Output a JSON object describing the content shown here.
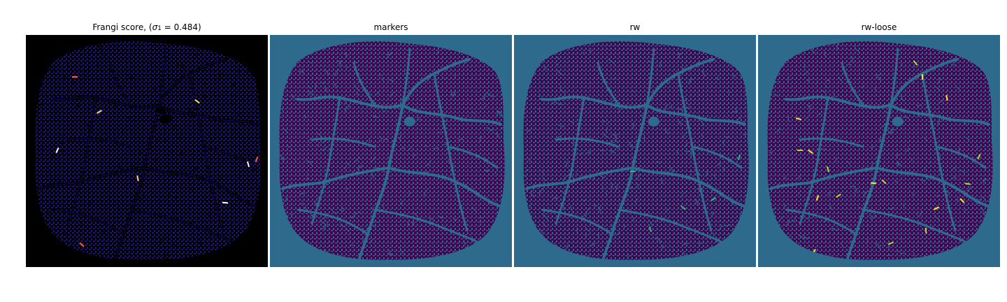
{
  "figure": {
    "panels": [
      {
        "id": "frangi",
        "title_prefix": "Frangi score, (",
        "title_sigma": "σ",
        "title_sub": "1",
        "title_suffix": " = 0.484)",
        "background_color": "#000000",
        "vessel_color": "#1a0fa0",
        "dark_vessel_color": "#000000",
        "highlight_colors": [
          "#ff5a3c",
          "#ffd27a",
          "#ffffff"
        ]
      },
      {
        "id": "markers",
        "title": "markers",
        "background_color": "#2e6a8c",
        "tissue_color": "#440154",
        "vessel_color": "#2e6a8c"
      },
      {
        "id": "rw",
        "title": "rw",
        "background_color": "#2e6a8c",
        "tissue_color": "#440154",
        "vessel_color": "#2e6a8c",
        "highlight_colors": [
          "#35b779"
        ]
      },
      {
        "id": "rw-loose",
        "title": "rw-loose",
        "background_color": "#2e6a8c",
        "tissue_color": "#440154",
        "vessel_color": "#2e6a8c",
        "highlight_colors": [
          "#b5de2b",
          "#fde725"
        ]
      }
    ]
  }
}
